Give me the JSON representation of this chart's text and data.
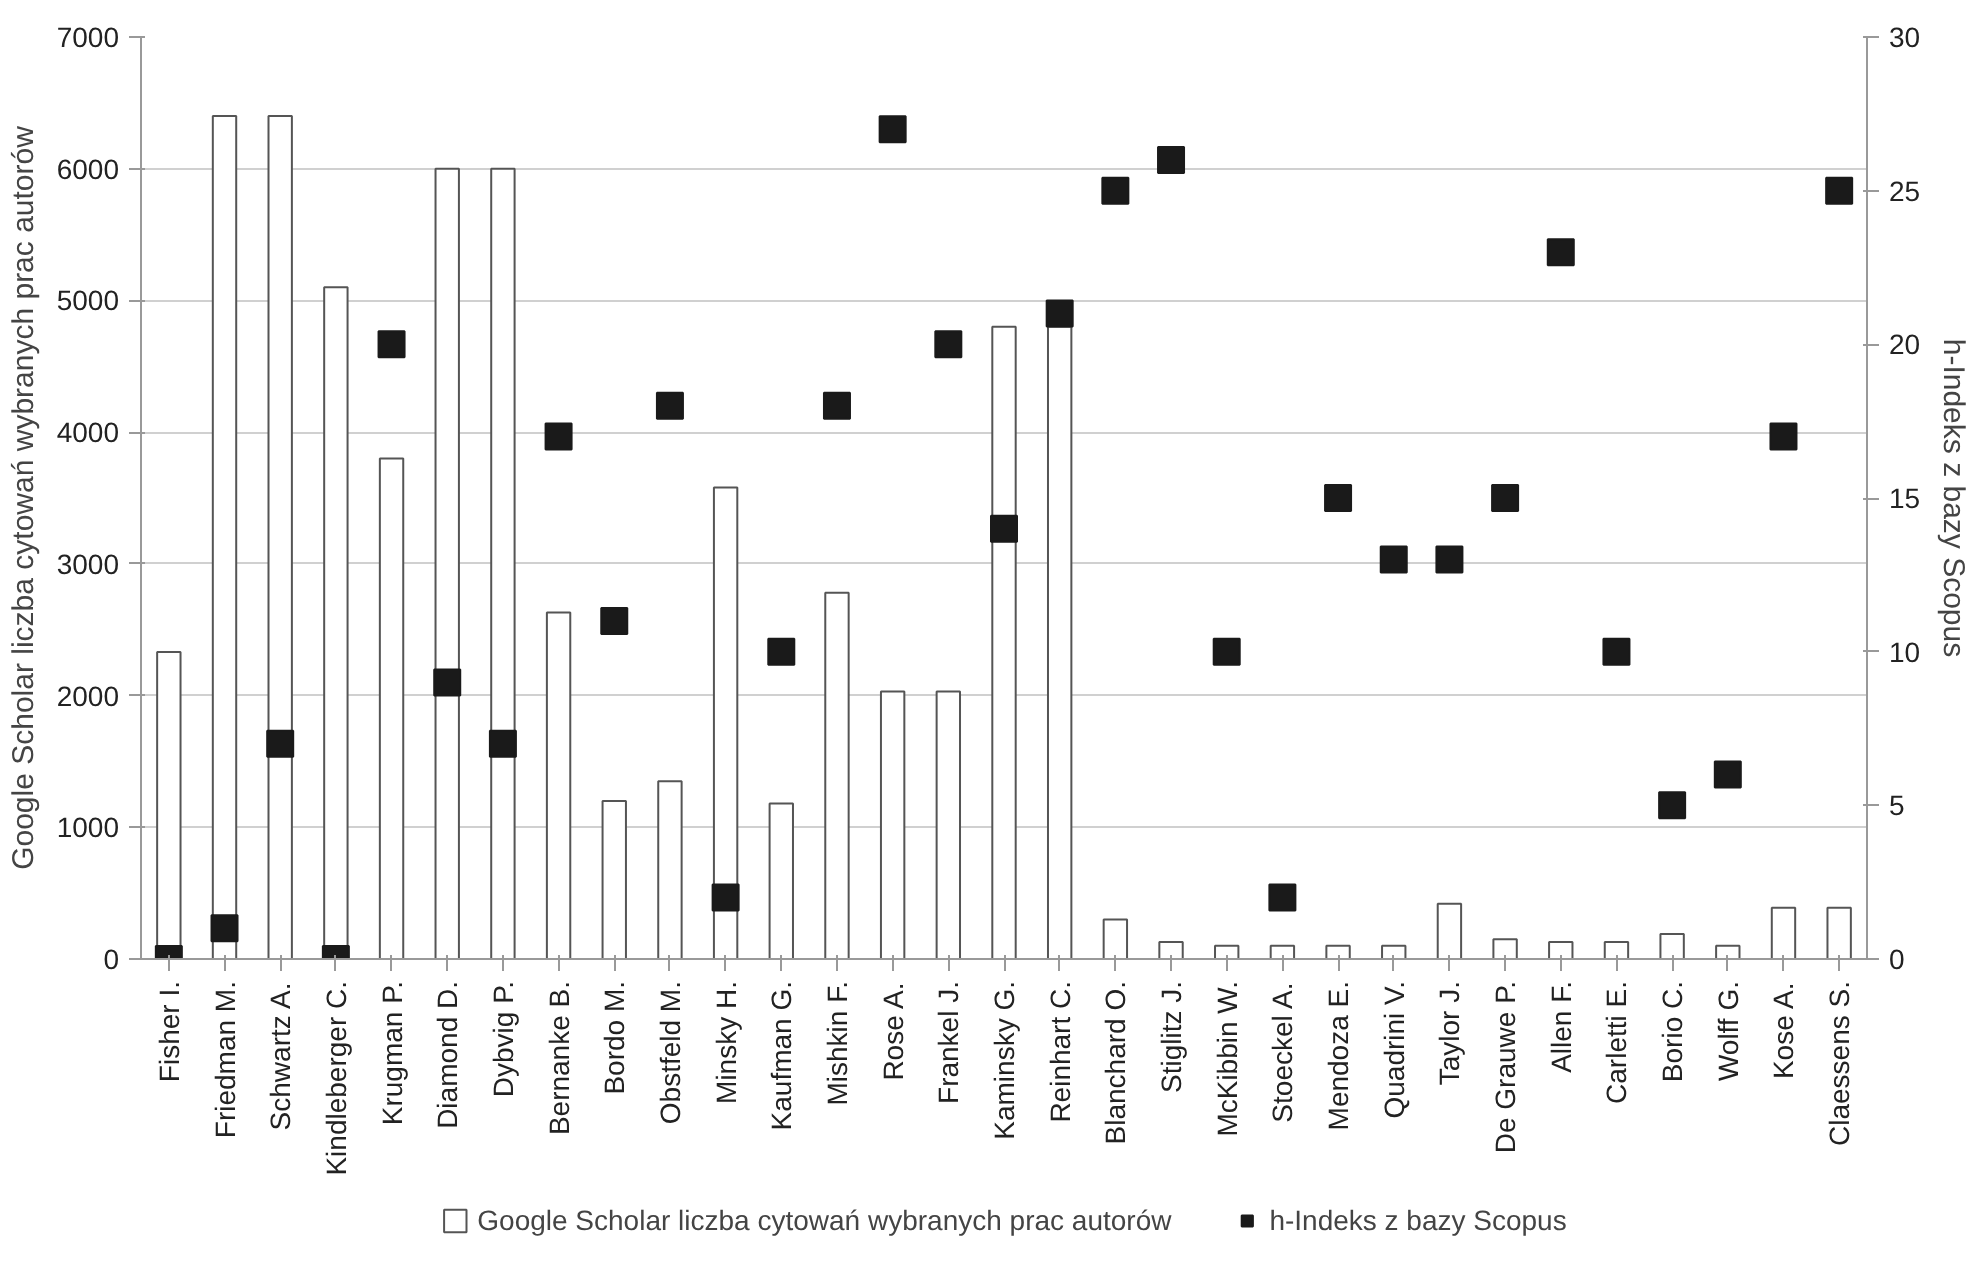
{
  "chart_data": {
    "type": "bar",
    "categories": [
      "Fisher I.",
      "Friedman M.",
      "Schwartz A.",
      "Kindleberger C.",
      "Krugman P.",
      "Diamond D.",
      "Dybvig P.",
      "Bernanke B.",
      "Bordo M.",
      "Obstfeld M.",
      "Minsky H.",
      "Kaufman G.",
      "Mishkin F.",
      "Rose A.",
      "Frankel J.",
      "Kaminsky G.",
      "Reinhart C.",
      "Blanchard O.",
      "Stiglitz J.",
      "McKibbin W.",
      "Stoeckel A.",
      "Mendoza E.",
      "Quadrini V.",
      "Taylor J.",
      "De Grauwe P.",
      "Allen F.",
      "Carletti E.",
      "Borio C.",
      "Wolff G.",
      "Kose A.",
      "Claessens S."
    ],
    "series": [
      {
        "name": "Google Scholar liczba cytowań wybranych prac autorów",
        "color": "#ffffff",
        "values": [
          2330,
          6400,
          6400,
          5100,
          3800,
          6000,
          6000,
          2630,
          1200,
          1350,
          3580,
          1180,
          2780,
          2030,
          2030,
          4800,
          4800,
          300,
          130,
          100,
          100,
          100,
          100,
          420,
          150,
          130,
          130,
          190,
          100,
          390,
          390
        ]
      },
      {
        "name": "h-Indeks z bazy Scopus",
        "type": "scatter",
        "axis": "y2",
        "color": "#1a1a1a",
        "marker": "square",
        "values": [
          0,
          1,
          7,
          0,
          20,
          9,
          7,
          17,
          11,
          18,
          2,
          10,
          18,
          27,
          20,
          14,
          21,
          25,
          26,
          10,
          2,
          15,
          13,
          13,
          15,
          23,
          10,
          5,
          6,
          17,
          25
        ]
      }
    ],
    "ylabel": "Google Scholar liczba cytowań wybranych prac autorów",
    "y2label": "h-Indeks z bazy Scopus",
    "ylim": [
      0,
      7000
    ],
    "yticks": [
      0,
      1000,
      2000,
      3000,
      4000,
      5000,
      6000,
      7000
    ],
    "y2lim": [
      0,
      30
    ],
    "y2ticks": [
      0,
      5,
      10,
      15,
      20,
      25,
      30
    ],
    "grid": "y",
    "legend": "bottom"
  }
}
